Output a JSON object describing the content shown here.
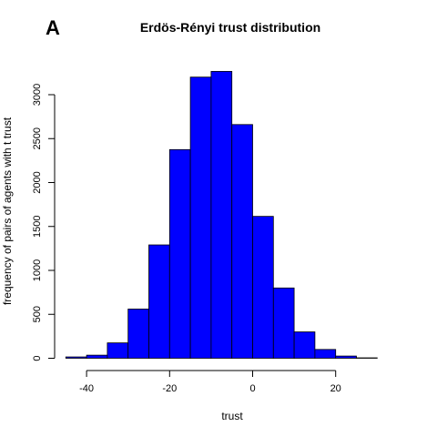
{
  "panel_label": "A",
  "chart_data": {
    "type": "bar",
    "subtype": "histogram",
    "title": "Erdös-Rényi trust distribution",
    "xlabel": "trust",
    "ylabel": "frequency of pairs of agents with t trust",
    "bins": [
      {
        "from": -45,
        "to": -40,
        "count": 15
      },
      {
        "from": -40,
        "to": -35,
        "count": 35
      },
      {
        "from": -35,
        "to": -30,
        "count": 175
      },
      {
        "from": -30,
        "to": -25,
        "count": 560
      },
      {
        "from": -25,
        "to": -20,
        "count": 1290
      },
      {
        "from": -20,
        "to": -15,
        "count": 2375
      },
      {
        "from": -15,
        "to": -10,
        "count": 3200
      },
      {
        "from": -10,
        "to": -5,
        "count": 3265
      },
      {
        "from": -5,
        "to": 0,
        "count": 2660
      },
      {
        "from": 0,
        "to": 5,
        "count": 1615
      },
      {
        "from": 5,
        "to": 10,
        "count": 800
      },
      {
        "from": 10,
        "to": 15,
        "count": 300
      },
      {
        "from": 15,
        "to": 20,
        "count": 100
      },
      {
        "from": 20,
        "to": 25,
        "count": 25
      },
      {
        "from": 25,
        "to": 30,
        "count": 5
      }
    ],
    "xticks": [
      -40,
      -20,
      0,
      20
    ],
    "yticks": [
      0,
      500,
      1000,
      1500,
      2000,
      2500,
      3000
    ],
    "xlim": [
      -45,
      35
    ],
    "ylim": [
      0,
      3265
    ],
    "bar_color": "#0000ff",
    "bar_border_color": "#000000",
    "grid": false
  }
}
